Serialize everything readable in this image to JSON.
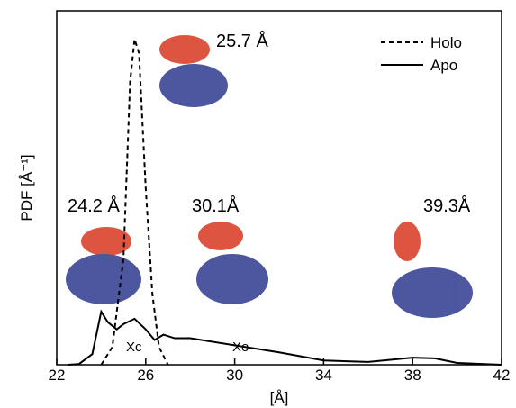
{
  "chart_data": {
    "type": "line",
    "xlabel": "[Å]",
    "ylabel": "PDF [Å⁻¹]",
    "xlim": [
      22,
      42
    ],
    "xticks": [
      22,
      26,
      30,
      34,
      38,
      42
    ],
    "ylim": [
      0,
      10
    ],
    "legend": "upper right",
    "annotations": [
      "25.7 Å",
      "24.2 Å",
      "30.1Å",
      "39.3Å",
      "Xc",
      "Xo"
    ],
    "series": [
      {
        "name": "Holo",
        "color": "#000000",
        "dashed": true,
        "x": [
          24,
          24.5,
          25,
          25.3,
          25.5,
          25.7,
          26,
          26.3,
          26.6,
          27
        ],
        "values": [
          0,
          0.5,
          3,
          8,
          9.2,
          8.8,
          5,
          2,
          0.5,
          0
        ]
      },
      {
        "name": "Apo",
        "color": "#000000",
        "dashed": false,
        "x": [
          22.5,
          23,
          23.6,
          24,
          24.3,
          24.7,
          25,
          25.5,
          26,
          26.4,
          26.8,
          27.3,
          28,
          30,
          32,
          34,
          36,
          38,
          39,
          40,
          42
        ],
        "values": [
          0,
          0.02,
          0.3,
          1.5,
          1.2,
          1.0,
          1.15,
          1.3,
          1.0,
          0.7,
          0.85,
          0.75,
          0.75,
          0.55,
          0.35,
          0.12,
          0.08,
          0.2,
          0.18,
          0.05,
          0
        ]
      }
    ]
  }
}
